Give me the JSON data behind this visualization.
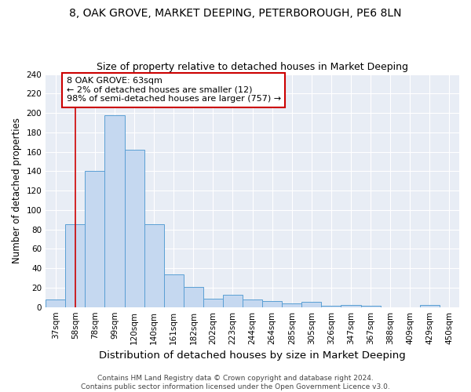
{
  "title": "8, OAK GROVE, MARKET DEEPING, PETERBOROUGH, PE6 8LN",
  "subtitle": "Size of property relative to detached houses in Market Deeping",
  "xlabel": "Distribution of detached houses by size in Market Deeping",
  "ylabel": "Number of detached properties",
  "categories": [
    "37sqm",
    "58sqm",
    "78sqm",
    "99sqm",
    "120sqm",
    "140sqm",
    "161sqm",
    "182sqm",
    "202sqm",
    "223sqm",
    "244sqm",
    "264sqm",
    "285sqm",
    "305sqm",
    "326sqm",
    "347sqm",
    "367sqm",
    "388sqm",
    "409sqm",
    "429sqm",
    "450sqm"
  ],
  "values": [
    8,
    85,
    140,
    198,
    162,
    85,
    34,
    21,
    9,
    13,
    8,
    6,
    4,
    5,
    1,
    2,
    1,
    0,
    0,
    2,
    0
  ],
  "bar_color": "#c5d8f0",
  "bar_edge_color": "#5a9fd4",
  "annotation_box_text": "8 OAK GROVE: 63sqm\n← 2% of detached houses are smaller (12)\n98% of semi-detached houses are larger (757) →",
  "annotation_box_color": "#ffffff",
  "annotation_box_edge_color": "#cc0000",
  "vline_x_index": 1,
  "vline_color": "#cc0000",
  "ylim": [
    0,
    240
  ],
  "yticks": [
    0,
    20,
    40,
    60,
    80,
    100,
    120,
    140,
    160,
    180,
    200,
    220,
    240
  ],
  "background_color": "#e8edf5",
  "footer_text": "Contains HM Land Registry data © Crown copyright and database right 2024.\nContains public sector information licensed under the Open Government Licence v3.0.",
  "title_fontsize": 10,
  "subtitle_fontsize": 9,
  "xlabel_fontsize": 9.5,
  "ylabel_fontsize": 8.5,
  "tick_fontsize": 7.5,
  "ann_fontsize": 8,
  "footer_fontsize": 6.5
}
